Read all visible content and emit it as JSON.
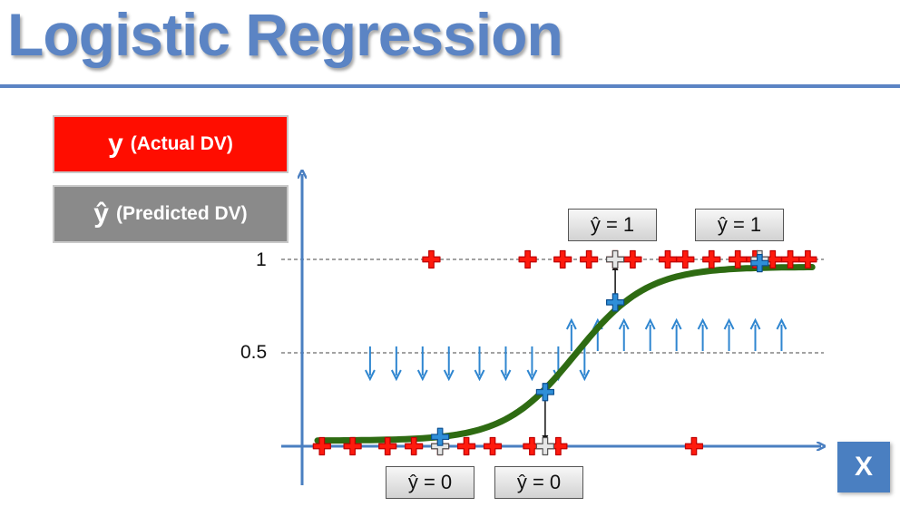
{
  "title": "Logistic Regression",
  "legend": {
    "actual": {
      "symbol": "y",
      "text": "(Actual DV)",
      "color": "#ff0d00"
    },
    "predicted": {
      "symbol": "ŷ",
      "text": "(Predicted DV)",
      "color": "#8a8a8a"
    }
  },
  "y_ticks": [
    "1",
    "0.5"
  ],
  "x_axis_label": "X",
  "prediction_labels": [
    "ŷ = 1",
    "ŷ = 1",
    "ŷ = 0",
    "ŷ = 0"
  ],
  "colors": {
    "curve": "#2e6b12",
    "axis": "#4a7fc1",
    "actual_point": "#ff1a0d",
    "predicted_point": "#2f8fd8",
    "projected_point": "#e6e6e6",
    "arrow": "#2f86d0",
    "title": "#5b84c4"
  },
  "chart_data": {
    "type": "scatter",
    "ylim": [
      0,
      1
    ],
    "threshold": 0.5,
    "actual_y1_x": [
      1.3,
      2.4,
      2.8,
      3.1,
      3.4,
      3.6,
      4.0,
      4.2,
      4.5,
      4.8,
      5.0,
      5.2,
      5.4,
      5.6
    ],
    "actual_y0_x": [
      0.05,
      0.4,
      0.8,
      1.1,
      1.4,
      1.7,
      2.0,
      2.45,
      2.75,
      4.3
    ],
    "predicted_points": [
      {
        "x": 1.4,
        "yhat": 0.05
      },
      {
        "x": 2.6,
        "yhat": 0.29
      },
      {
        "x": 3.4,
        "yhat": 0.77
      },
      {
        "x": 5.05,
        "yhat": 0.98
      }
    ],
    "projections": [
      {
        "x": 1.4,
        "yhat": 0
      },
      {
        "x": 2.6,
        "yhat": 0
      },
      {
        "x": 3.4,
        "yhat": 1
      },
      {
        "x": 5.05,
        "yhat": 1
      }
    ],
    "down_arrow_x": [
      0.6,
      0.9,
      1.2,
      1.5,
      1.85,
      2.15,
      2.45,
      2.75,
      3.05
    ],
    "up_arrow_x": [
      2.9,
      3.2,
      3.5,
      3.8,
      4.1,
      4.4,
      4.7,
      5.0,
      5.3
    ]
  }
}
